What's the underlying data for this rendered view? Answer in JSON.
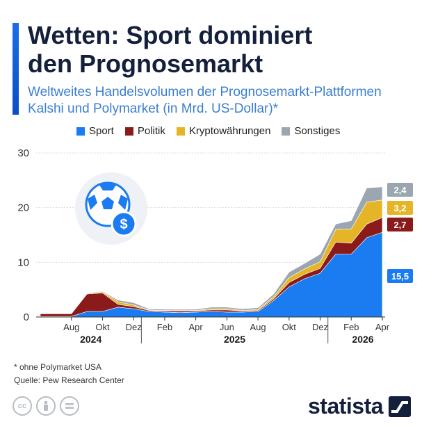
{
  "title_line1": "Wetten: Sport dominiert",
  "title_line2": "den Prognosemarkt",
  "subtitle_line1": "Weltweites Handelsvolumen der Prognosemarkt-Plattformen",
  "subtitle_line2": "Kalshi und Polymarket (in Mrd. US-Dollar)*",
  "footnote": "* ohne Polymarket USA",
  "source": "Quelle: Pew Research Center",
  "brand": "statista",
  "colors": {
    "sport": "#1a7cf0",
    "politik": "#8b1a1a",
    "krypto": "#e6b527",
    "sonstiges": "#9ba6b0",
    "title": "#141f3c",
    "subtitle": "#3b7ed0"
  },
  "icons": [
    "soccer-ball-dollar-icon",
    "cc-icon",
    "by-icon",
    "nd-icon",
    "statista-logo-icon"
  ],
  "chart_data": {
    "type": "area",
    "stacked": true,
    "x": [
      "2024-06",
      "2024-07",
      "2024-08",
      "2024-09",
      "2024-10",
      "2024-11",
      "2024-12",
      "2025-01",
      "2025-02",
      "2025-03",
      "2025-04",
      "2025-05",
      "2025-06",
      "2025-07",
      "2025-08",
      "2025-09",
      "2025-10",
      "2025-11",
      "2025-12",
      "2026-01",
      "2026-02",
      "2026-03",
      "2026-04"
    ],
    "series": [
      {
        "name": "Sport",
        "values": [
          0.1,
          0.1,
          0.1,
          1.0,
          1.0,
          1.8,
          1.5,
          1.0,
          0.9,
          0.8,
          0.9,
          1.0,
          0.9,
          0.9,
          1.0,
          3.0,
          5.5,
          7.0,
          8.0,
          11.5,
          11.5,
          14.5,
          15.5
        ]
      },
      {
        "name": "Politik",
        "values": [
          0.5,
          0.5,
          0.5,
          3.2,
          3.4,
          0.5,
          0.4,
          0.2,
          0.2,
          0.3,
          0.2,
          0.3,
          0.4,
          0.2,
          0.2,
          0.3,
          0.8,
          0.8,
          0.9,
          2.2,
          2.0,
          2.5,
          2.7
        ]
      },
      {
        "name": "Kryptowährungen",
        "values": [
          0.05,
          0.05,
          0.05,
          0.1,
          0.2,
          0.5,
          0.3,
          0.1,
          0.1,
          0.1,
          0.1,
          0.2,
          0.2,
          0.1,
          0.2,
          0.4,
          0.9,
          1.0,
          1.2,
          2.3,
          2.6,
          4.0,
          3.2
        ]
      },
      {
        "name": "Sonstiges",
        "values": [
          0.05,
          0.05,
          0.05,
          0.1,
          0.1,
          0.3,
          0.4,
          0.2,
          0.2,
          0.2,
          0.2,
          0.3,
          0.3,
          0.3,
          0.3,
          0.5,
          1.0,
          1.0,
          1.4,
          1.0,
          1.5,
          2.6,
          2.4
        ]
      }
    ],
    "end_labels": [
      "15,5",
      "2,7",
      "3,2",
      "2,4"
    ],
    "ylim": [
      0,
      30
    ],
    "yticks": [
      "0",
      "10",
      "20",
      "30"
    ],
    "month_ticks": [
      "Aug",
      "Okt",
      "Dez",
      "Feb",
      "Apr",
      "Jun",
      "Aug",
      "Okt",
      "Dez",
      "Feb",
      "Apr"
    ],
    "year_labels": [
      "2024",
      "2025",
      "2026"
    ],
    "legend": [
      "Sport",
      "Politik",
      "Kryptowährungen",
      "Sonstiges"
    ],
    "legend_position": "top",
    "grid": true
  }
}
